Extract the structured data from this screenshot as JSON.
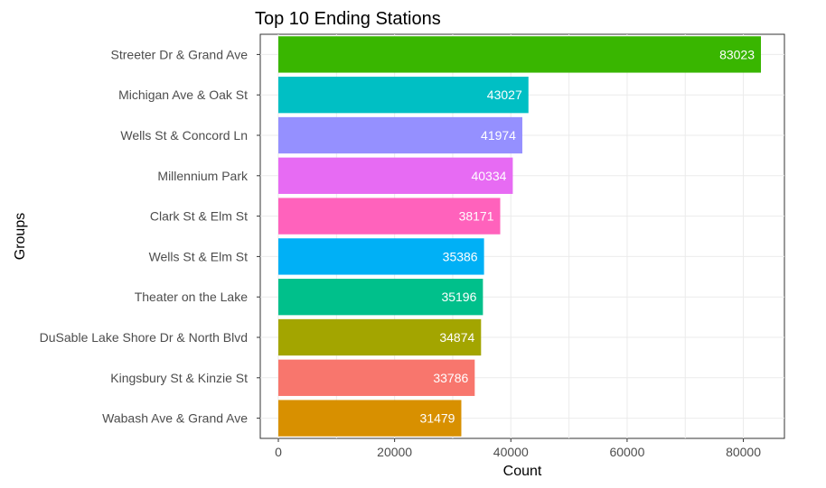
{
  "chart_data": {
    "type": "bar",
    "orientation": "horizontal",
    "title": "Top 10 Ending Stations",
    "xlabel": "Count",
    "ylabel": "Groups",
    "xlim": [
      0,
      87000
    ],
    "x_ticks": [
      0,
      20000,
      40000,
      60000,
      80000
    ],
    "grid": true,
    "legend": "none",
    "categories": [
      "Streeter Dr & Grand Ave",
      "Michigan Ave & Oak St",
      "Wells St & Concord Ln",
      "Millennium Park",
      "Clark St & Elm St",
      "Wells St & Elm St",
      "Theater on the Lake",
      "DuSable Lake Shore Dr & North Blvd",
      "Kingsbury St & Kinzie St",
      "Wabash Ave & Grand Ave"
    ],
    "values": [
      83023,
      43027,
      41974,
      40334,
      38171,
      35386,
      35196,
      34874,
      33786,
      31479
    ],
    "colors": [
      "#39B600",
      "#00BFC4",
      "#9590FF",
      "#E76BF3",
      "#FF62BC",
      "#00B0F6",
      "#00C08B",
      "#A3A500",
      "#F8766D",
      "#D89000"
    ]
  }
}
